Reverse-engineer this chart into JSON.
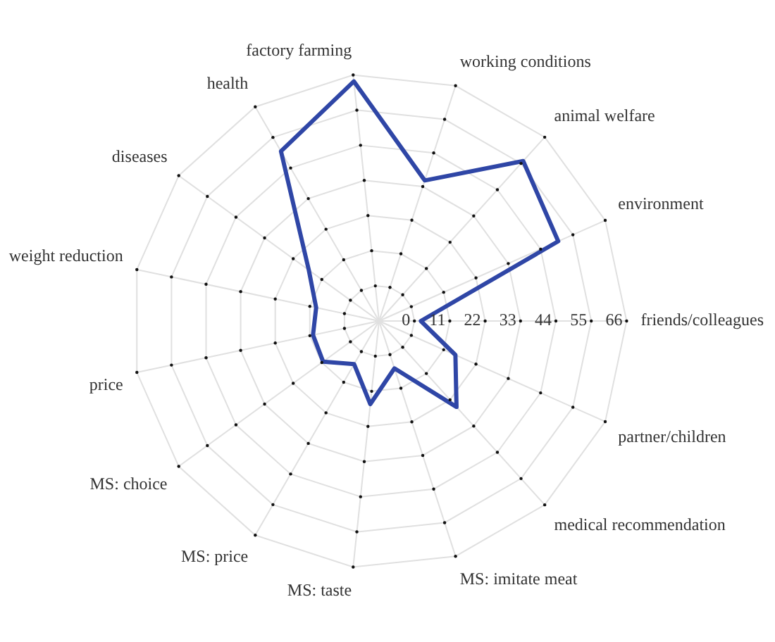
{
  "chart_data": {
    "type": "radar",
    "categories": [
      "factory farming",
      "working conditions",
      "animal welfare",
      "environment",
      "friends/colleagues",
      "partner/children",
      "medical recommendation",
      "MS: imitate meat",
      "MS: taste",
      "MS: price",
      "MS: choice",
      "price",
      "weight reduction",
      "diseases",
      "health"
    ],
    "series": [
      {
        "color": "#2f46a6",
        "values": [
          64,
          35,
          56,
          50,
          2,
          15,
          25,
          4.5,
          15,
          4.5,
          10.5,
          10,
          9,
          16,
          50
        ]
      }
    ],
    "ylim": [
      -11,
      66
    ],
    "yticks": [
      0,
      11,
      22,
      33,
      44,
      55,
      66
    ],
    "grid": true,
    "legend": false,
    "marker": "none",
    "line_style": "solid"
  }
}
